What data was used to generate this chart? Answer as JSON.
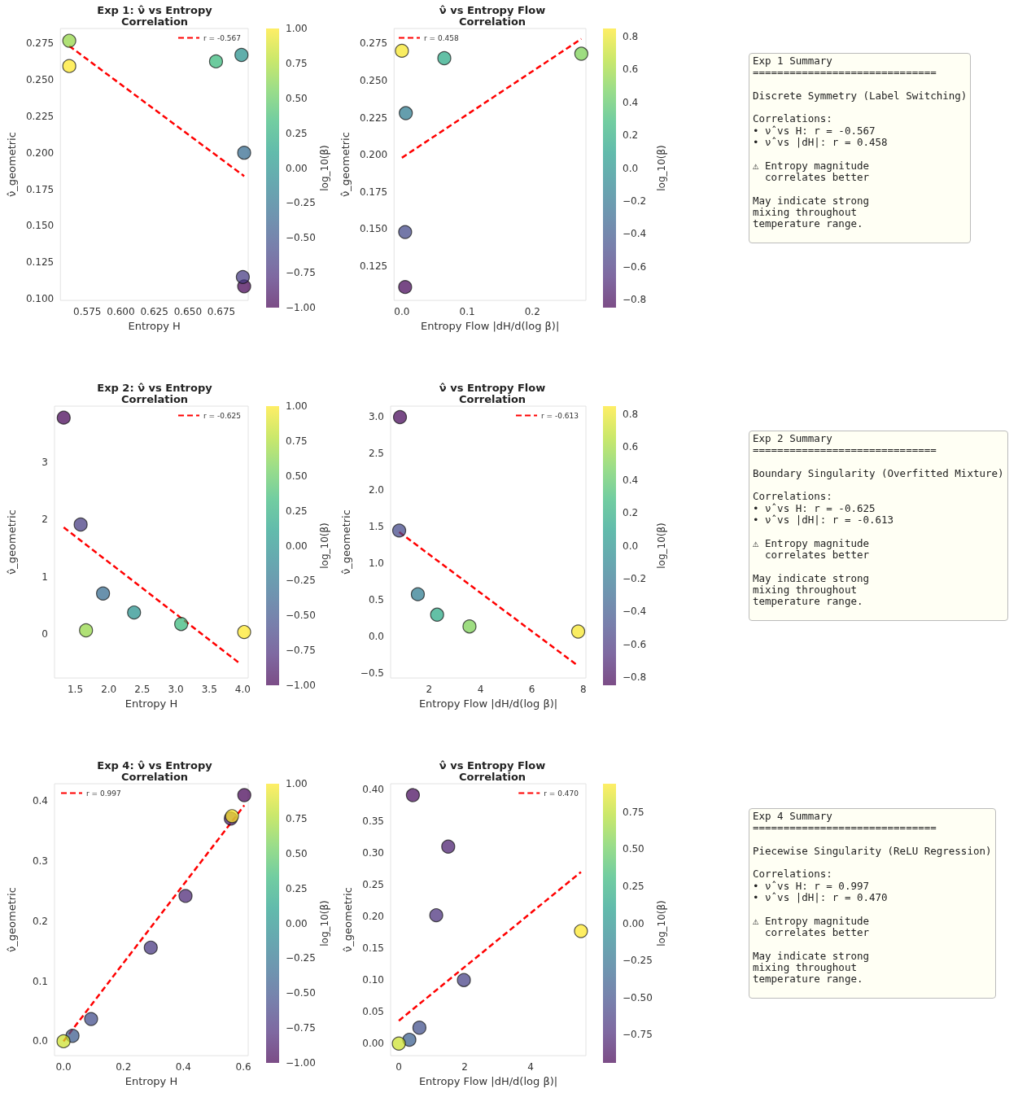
{
  "chart_data": [
    {
      "type": "scatter",
      "title": "Exp 1: ν̂ vs Entropy\nCorrelation",
      "xlabel": "Entropy H",
      "ylabel": "ν̂_geometric",
      "clabel": "log_10(β)",
      "grid": false,
      "legend": "top right",
      "xlim": [
        0.555,
        0.695
      ],
      "xticks": [
        0.575,
        {
          "value": 0.6,
          "label": "0.600"
        },
        0.625,
        {
          "value": 0.65,
          "label": "0.650"
        },
        0.675
      ],
      "ylim": [
        0.099,
        0.285
      ],
      "yticks": [
        {
          "value": 0.1,
          "label": "0.100"
        },
        0.125,
        {
          "value": 0.15,
          "label": "0.150"
        },
        0.175,
        {
          "value": 0.2,
          "label": "0.200"
        },
        0.225,
        {
          "value": 0.25,
          "label": "0.250"
        },
        0.275
      ],
      "clim": [
        -1,
        1
      ],
      "cticks": [
        {
          "value": -1,
          "label": "−1.00"
        },
        {
          "value": -0.75,
          "label": "−0.75"
        },
        {
          "value": -0.5,
          "label": "−0.50"
        },
        {
          "value": -0.25,
          "label": "−0.25"
        },
        {
          "value": 0,
          "label": "0.00"
        },
        {
          "value": 0.25,
          "label": "0.25"
        },
        {
          "value": 0.5,
          "label": "0.50"
        },
        {
          "value": 0.75,
          "label": "0.75"
        },
        {
          "value": 1,
          "label": "1.00"
        }
      ],
      "series": [
        {
          "type": "scatter",
          "marker": "circle",
          "x": [
            0.692,
            0.691,
            0.692,
            0.69,
            0.671,
            0.5616,
            0.5616
          ],
          "values": [
            0.1086,
            0.115,
            0.2,
            0.2669,
            0.2625,
            0.2766,
            0.2593
          ],
          "colors": [
            "#440154",
            "#433880",
            "#31688e",
            "#228f8b",
            "#35b779",
            "#91d641",
            "#fde725"
          ]
        },
        {
          "type": "line",
          "name": "r = -0.567",
          "color": "#ff0000",
          "line_style": "dashed",
          "marker": "none",
          "x": [
            0.5616,
            0.692
          ],
          "values": [
            0.273,
            0.184
          ]
        }
      ]
    },
    {
      "type": "scatter",
      "title": "ν̂ vs Entropy Flow\nCorrelation",
      "xlabel": "Entropy Flow |dH/d(log β)|",
      "ylabel": "ν̂_geometric",
      "clabel": "log_10(β)",
      "grid": false,
      "legend": "top left",
      "xlim": [
        -0.012,
        0.282
      ],
      "xticks": [
        {
          "value": 0,
          "label": "0.0"
        },
        0.1,
        0.2
      ],
      "ylim": [
        0.102,
        0.285
      ],
      "yticks": [
        0.125,
        {
          "value": 0.15,
          "label": "0.150"
        },
        0.175,
        {
          "value": 0.2,
          "label": "0.200"
        },
        0.225,
        {
          "value": 0.25,
          "label": "0.250"
        },
        0.275
      ],
      "clim": [
        -0.85,
        0.85
      ],
      "cticks": [
        {
          "value": -0.8,
          "label": "−0.8"
        },
        {
          "value": -0.6,
          "label": "−0.6"
        },
        {
          "value": -0.4,
          "label": "−0.4"
        },
        {
          "value": -0.2,
          "label": "−0.2"
        },
        {
          "value": 0,
          "label": "0.0"
        },
        0.2,
        0.4,
        0.6,
        0.8
      ],
      "series": [
        {
          "type": "scatter",
          "marker": "circle",
          "x": [
            0.005,
            0.005,
            0.006,
            0.065,
            0.275,
            0.0
          ],
          "values": [
            0.111,
            0.148,
            0.228,
            0.265,
            0.268,
            0.27
          ],
          "colors": [
            "#440457",
            "#3f4486",
            "#2a788e",
            "#27a783",
            "#78d051",
            "#f6e625"
          ]
        },
        {
          "type": "line",
          "name": "r = 0.458",
          "color": "#ff0000",
          "line_style": "dashed",
          "marker": "none",
          "x": [
            0.0,
            0.275
          ],
          "values": [
            0.198,
            0.278
          ]
        }
      ]
    },
    {
      "type": "other",
      "title": "Exp 1 Summary",
      "annotations": [
        "==============================",
        "Discrete Symmetry (Label Switching)",
        "Correlations:\n• ν̂ vs H: r = -0.567\n• ν̂ vs |dH|: r = 0.458",
        "⚠ Entropy magnitude\n  correlates better",
        "May indicate strong\nmixing throughout\ntemperature range."
      ]
    },
    {
      "type": "scatter",
      "title": "Exp 2: ν̂ vs Entropy\nCorrelation",
      "xlabel": "Entropy H",
      "ylabel": "ν̂_geometric",
      "clabel": "log_10(β)",
      "grid": false,
      "legend": "top right",
      "xlim": [
        1.19,
        4.08
      ],
      "xticks": [
        1.5,
        {
          "value": 2,
          "label": "2.0"
        },
        2.5,
        {
          "value": 3,
          "label": "3.0"
        },
        3.5,
        {
          "value": 4,
          "label": "4.0"
        }
      ],
      "ylim": [
        -0.76,
        3.97
      ],
      "yticks": [
        0,
        1,
        2,
        3
      ],
      "clim": [
        -1,
        1
      ],
      "cticks": [
        {
          "value": -1,
          "label": "−1.00"
        },
        {
          "value": -0.75,
          "label": "−0.75"
        },
        {
          "value": -0.5,
          "label": "−0.50"
        },
        {
          "value": -0.25,
          "label": "−0.25"
        },
        {
          "value": 0,
          "label": "0.00"
        },
        {
          "value": 0.25,
          "label": "0.25"
        },
        {
          "value": 0.5,
          "label": "0.50"
        },
        {
          "value": 0.75,
          "label": "0.75"
        },
        {
          "value": 1,
          "label": "1.00"
        }
      ],
      "series": [
        {
          "type": "scatter",
          "marker": "circle",
          "x": [
            1.327,
            1.58,
            1.914,
            2.377,
            3.08,
            1.66,
            4.02
          ],
          "values": [
            3.77,
            1.91,
            0.71,
            0.38,
            0.18,
            0.07,
            0.04
          ],
          "colors": [
            "#440154",
            "#433880",
            "#31688e",
            "#228f8b",
            "#35b779",
            "#91d641",
            "#fde725"
          ]
        },
        {
          "type": "line",
          "name": "r = -0.625",
          "color": "#ff0000",
          "line_style": "dashed",
          "marker": "none",
          "x": [
            1.327,
            3.96
          ],
          "values": [
            1.86,
            -0.51
          ]
        }
      ]
    },
    {
      "type": "scatter",
      "title": "ν̂ vs Entropy Flow\nCorrelation",
      "xlabel": "Entropy Flow |dH/d(log β)|",
      "ylabel": "ν̂_geometric",
      "clabel": "log_10(β)",
      "grid": false,
      "legend": "top right",
      "xlim": [
        0.5,
        8.1
      ],
      "xticks": [
        2,
        4,
        6,
        8
      ],
      "ylim": [
        -0.565,
        3.15
      ],
      "yticks": [
        {
          "value": -0.5,
          "label": "−0.5"
        },
        {
          "value": 0,
          "label": "0.0"
        },
        0.5,
        {
          "value": 1,
          "label": "1.0"
        },
        1.5,
        {
          "value": 2,
          "label": "2.0"
        },
        2.5,
        {
          "value": 3,
          "label": "3.0"
        }
      ],
      "clim": [
        -0.85,
        0.85
      ],
      "cticks": [
        {
          "value": -0.8,
          "label": "−0.8"
        },
        {
          "value": -0.6,
          "label": "−0.6"
        },
        {
          "value": -0.4,
          "label": "−0.4"
        },
        {
          "value": -0.2,
          "label": "−0.2"
        },
        {
          "value": 0,
          "label": "0.0"
        },
        0.2,
        0.4,
        0.6,
        0.8
      ],
      "series": [
        {
          "type": "scatter",
          "marker": "circle",
          "x": [
            0.865,
            0.834,
            1.56,
            2.31,
            3.57,
            7.8
          ],
          "values": [
            3.0,
            1.45,
            0.58,
            0.3,
            0.14,
            0.07
          ],
          "colors": [
            "#440457",
            "#3f4486",
            "#2a788e",
            "#27a783",
            "#78d051",
            "#f6e625"
          ]
        },
        {
          "type": "line",
          "name": "r = -0.613",
          "color": "#ff0000",
          "line_style": "dashed",
          "marker": "none",
          "x": [
            0.834,
            7.8
          ],
          "values": [
            1.43,
            -0.4
          ]
        }
      ]
    },
    {
      "type": "other",
      "title": "Exp 2 Summary",
      "annotations": [
        "==============================",
        "Boundary Singularity (Overfitted Mixture)",
        "Correlations:\n• ν̂ vs H: r = -0.625\n• ν̂ vs |dH|: r = -0.613",
        "⚠ Entropy magnitude\n  correlates better",
        "May indicate strong\nmixing throughout\ntemperature range."
      ]
    },
    {
      "type": "scatter",
      "title": "Exp 4: ν̂ vs Entropy\nCorrelation",
      "xlabel": "Entropy H",
      "ylabel": "ν̂_geometric",
      "clabel": "log_10(β)",
      "grid": false,
      "legend": "top left",
      "xlim": [
        -0.03,
        0.616
      ],
      "xticks": [
        {
          "value": 0,
          "label": "0.0"
        },
        0.2,
        0.4,
        0.6
      ],
      "ylim": [
        -0.024,
        0.429
      ],
      "yticks": [
        {
          "value": 0,
          "label": "0.0"
        },
        0.1,
        0.2,
        0.3,
        0.4
      ],
      "clim": [
        -1,
        1
      ],
      "cticks": [
        {
          "value": -1,
          "label": "−1.00"
        },
        {
          "value": -0.75,
          "label": "−0.75"
        },
        {
          "value": -0.5,
          "label": "−0.50"
        },
        {
          "value": -0.25,
          "label": "−0.25"
        },
        {
          "value": 0,
          "label": "0.00"
        },
        {
          "value": 0.25,
          "label": "0.25"
        },
        {
          "value": 0.5,
          "label": "0.50"
        },
        {
          "value": 0.75,
          "label": "0.75"
        },
        {
          "value": 1,
          "label": "1.00"
        }
      ],
      "series": [
        {
          "type": "scatter",
          "marker": "circle",
          "x": [
            0.603,
            0.558,
            0.407,
            0.291,
            0.092,
            0.03,
            0.562,
            0.0
          ],
          "values": [
            0.41,
            0.371,
            0.242,
            0.156,
            0.037,
            0.009,
            0.375,
            0.0
          ],
          "colors": [
            "#440154",
            "#471b6c",
            "#482373",
            "#44337e",
            "#3e4a89",
            "#38588b",
            "#fde725",
            "#cce129"
          ]
        },
        {
          "type": "line",
          "name": "r = 0.997",
          "color": "#ff0000",
          "line_style": "dashed",
          "marker": "none",
          "x": [
            0.0,
            0.603
          ],
          "values": [
            0.0,
            0.393
          ]
        }
      ]
    },
    {
      "type": "scatter",
      "title": "ν̂ vs Entropy Flow\nCorrelation",
      "xlabel": "Entropy Flow |dH/d(log β)|",
      "ylabel": "ν̂_geometric",
      "clabel": "log_10(β)",
      "grid": false,
      "legend": "top right",
      "xlim": [
        -0.25,
        5.68
      ],
      "xticks": [
        0,
        2,
        4
      ],
      "ylim": [
        -0.019,
        0.409
      ],
      "yticks": [
        {
          "value": 0,
          "label": "0.00"
        },
        0.05,
        {
          "value": 0.1,
          "label": "0.10"
        },
        0.15,
        {
          "value": 0.2,
          "label": "0.20"
        },
        0.25,
        {
          "value": 0.3,
          "label": "0.30"
        },
        0.35,
        {
          "value": 0.4,
          "label": "0.40"
        }
      ],
      "clim": [
        -0.94,
        0.94
      ],
      "cticks": [
        {
          "value": -0.75,
          "label": "−0.75"
        },
        {
          "value": -0.5,
          "label": "−0.50"
        },
        {
          "value": -0.25,
          "label": "−0.25"
        },
        {
          "value": 0,
          "label": "0.00"
        },
        0.25,
        {
          "value": 0.5,
          "label": "0.50"
        },
        0.75
      ],
      "series": [
        {
          "type": "scatter",
          "marker": "circle",
          "x": [
            0.427,
            1.5,
            1.136,
            1.975,
            0.625,
            0.32,
            5.53,
            0.0
          ],
          "values": [
            0.391,
            0.31,
            0.202,
            0.1,
            0.025,
            0.006,
            0.177,
            0.0
          ],
          "colors": [
            "#45085b",
            "#471b6c",
            "#462d7a",
            "#423d83",
            "#3d4c89",
            "#365b8c",
            "#fde725",
            "#cce129"
          ]
        },
        {
          "type": "line",
          "name": "r = 0.470",
          "color": "#ff0000",
          "line_style": "dashed",
          "marker": "none",
          "x": [
            0.0,
            5.53
          ],
          "values": [
            0.036,
            0.27
          ]
        }
      ]
    },
    {
      "type": "other",
      "title": "Exp 4 Summary",
      "annotations": [
        "==============================",
        "Piecewise Singularity (ReLU Regression)",
        "Correlations:\n• ν̂ vs H: r = 0.997\n• ν̂ vs |dH|: r = 0.470",
        "⚠ Entropy magnitude\n  correlates better",
        "May indicate strong\nmixing throughout\ntemperature range."
      ]
    }
  ]
}
